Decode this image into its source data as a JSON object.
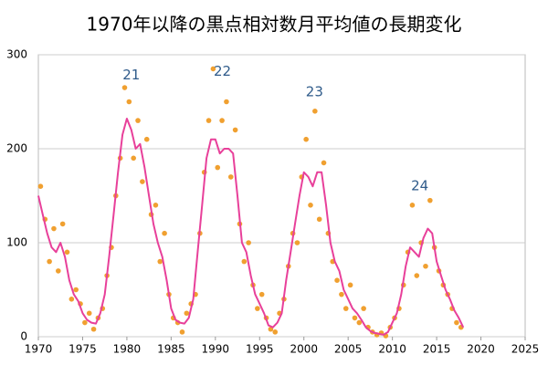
{
  "chart_data": {
    "type": "scatter",
    "title": "1970年以降の黒点相対数月平均値の長期変化",
    "xlim": [
      1970,
      2025
    ],
    "xticks": [
      1970,
      1975,
      1980,
      1985,
      1990,
      1995,
      2000,
      2005,
      2010,
      2015,
      2020,
      2025
    ],
    "ylim": [
      0,
      300
    ],
    "yticks": [
      0,
      100,
      200,
      300
    ],
    "grid": true,
    "series": [
      {
        "type": "scatter",
        "color": "#f0a030",
        "x": [
          1970.25,
          1970.75,
          1971.25,
          1971.75,
          1972.25,
          1972.75,
          1973.25,
          1973.75,
          1974.25,
          1974.75,
          1975.25,
          1975.75,
          1976.25,
          1976.75,
          1977.25,
          1977.75,
          1978.25,
          1978.75,
          1979.25,
          1979.75,
          1980.25,
          1980.75,
          1981.25,
          1981.75,
          1982.25,
          1982.75,
          1983.25,
          1983.75,
          1984.25,
          1984.75,
          1985.25,
          1985.75,
          1986.25,
          1986.75,
          1987.25,
          1987.75,
          1988.25,
          1988.75,
          1989.25,
          1989.75,
          1990.25,
          1990.75,
          1991.25,
          1991.75,
          1992.25,
          1992.75,
          1993.25,
          1993.75,
          1994.25,
          1994.75,
          1995.25,
          1995.75,
          1996.25,
          1996.75,
          1997.25,
          1997.75,
          1998.25,
          1998.75,
          1999.25,
          1999.75,
          2000.25,
          2000.75,
          2001.25,
          2001.75,
          2002.25,
          2002.75,
          2003.25,
          2003.75,
          2004.25,
          2004.75,
          2005.25,
          2005.75,
          2006.25,
          2006.75,
          2007.25,
          2007.75,
          2008.25,
          2008.75,
          2009.25,
          2009.75,
          2010.25,
          2010.75,
          2011.25,
          2011.75,
          2012.25,
          2012.75,
          2013.25,
          2013.75,
          2014.25,
          2014.75,
          2015.25,
          2015.75,
          2016.25,
          2016.75,
          2017.25,
          2017.75
        ],
        "values": [
          160,
          125,
          80,
          115,
          70,
          120,
          90,
          40,
          50,
          35,
          15,
          25,
          8,
          20,
          30,
          65,
          95,
          150,
          190,
          265,
          250,
          190,
          230,
          165,
          210,
          130,
          140,
          80,
          110,
          45,
          20,
          15,
          5,
          25,
          35,
          45,
          110,
          175,
          230,
          285,
          180,
          230,
          250,
          170,
          220,
          120,
          80,
          100,
          55,
          30,
          45,
          20,
          8,
          5,
          25,
          40,
          75,
          110,
          100,
          170,
          210,
          140,
          240,
          125,
          185,
          110,
          80,
          60,
          45,
          30,
          55,
          20,
          15,
          30,
          10,
          5,
          2,
          4,
          1,
          10,
          20,
          30,
          55,
          90,
          140,
          65,
          100,
          75,
          145,
          95,
          70,
          55,
          45,
          30,
          15,
          10
        ]
      },
      {
        "type": "line",
        "color": "#e8409a",
        "x": [
          1970,
          1970.5,
          1971,
          1971.5,
          1972,
          1972.5,
          1973,
          1973.5,
          1974,
          1974.5,
          1975,
          1975.5,
          1976,
          1976.5,
          1977,
          1977.5,
          1978,
          1978.5,
          1979,
          1979.5,
          1980,
          1980.5,
          1981,
          1981.5,
          1982,
          1982.5,
          1983,
          1983.5,
          1984,
          1984.5,
          1985,
          1985.5,
          1986,
          1986.5,
          1987,
          1987.5,
          1988,
          1988.5,
          1989,
          1989.5,
          1990,
          1990.5,
          1991,
          1991.5,
          1992,
          1992.5,
          1993,
          1993.5,
          1994,
          1994.5,
          1995,
          1995.5,
          1996,
          1996.5,
          1997,
          1997.5,
          1998,
          1998.5,
          1999,
          1999.5,
          2000,
          2000.5,
          2001,
          2001.5,
          2002,
          2002.5,
          2003,
          2003.5,
          2004,
          2004.5,
          2005,
          2005.5,
          2006,
          2006.5,
          2007,
          2007.5,
          2008,
          2008.5,
          2009,
          2009.5,
          2010,
          2010.5,
          2011,
          2011.5,
          2012,
          2012.5,
          2013,
          2013.5,
          2014,
          2014.5,
          2015,
          2015.5,
          2016,
          2016.5,
          2017,
          2017.5,
          2018
        ],
        "values": [
          150,
          130,
          110,
          95,
          90,
          100,
          85,
          60,
          45,
          38,
          25,
          18,
          15,
          14,
          25,
          45,
          85,
          130,
          175,
          215,
          232,
          220,
          200,
          205,
          180,
          150,
          120,
          100,
          85,
          60,
          30,
          18,
          15,
          14,
          20,
          40,
          90,
          140,
          190,
          210,
          210,
          195,
          200,
          200,
          195,
          150,
          100,
          90,
          65,
          45,
          35,
          25,
          12,
          10,
          15,
          25,
          60,
          90,
          120,
          150,
          175,
          170,
          160,
          175,
          175,
          140,
          100,
          80,
          70,
          50,
          40,
          30,
          25,
          18,
          10,
          6,
          4,
          3,
          2,
          5,
          15,
          25,
          45,
          75,
          95,
          90,
          85,
          105,
          115,
          110,
          80,
          65,
          50,
          40,
          28,
          20,
          10
        ]
      }
    ],
    "annotations": [
      {
        "text": "21",
        "x": 1980.5,
        "y": 278
      },
      {
        "text": "22",
        "x": 1990.8,
        "y": 282
      },
      {
        "text": "23",
        "x": 2001.2,
        "y": 260
      },
      {
        "text": "24",
        "x": 2013.1,
        "y": 160
      }
    ]
  }
}
